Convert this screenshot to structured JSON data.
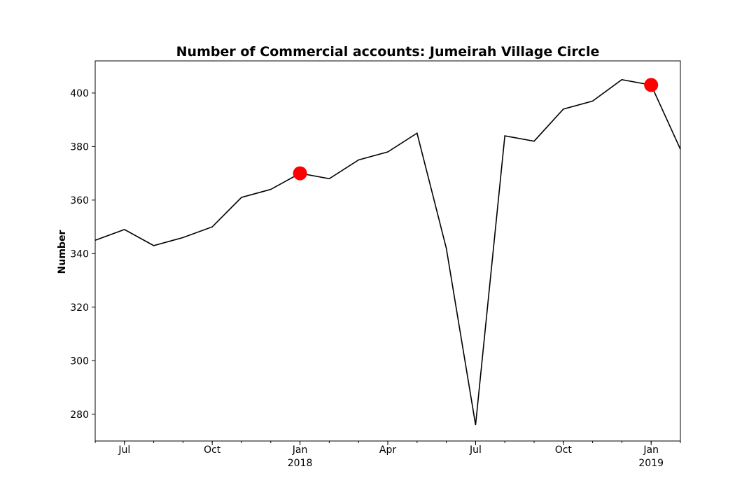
{
  "chart_data": {
    "type": "line",
    "title": "Number of Commercial accounts: Jumeirah Village Circle",
    "xlabel": "",
    "ylabel": "Number",
    "x": [
      "2017-06",
      "2017-07",
      "2017-08",
      "2017-09",
      "2017-10",
      "2017-11",
      "2017-12",
      "2018-01",
      "2018-02",
      "2018-03",
      "2018-04",
      "2018-05",
      "2018-06",
      "2018-07",
      "2018-08",
      "2018-09",
      "2018-10",
      "2018-11",
      "2018-12",
      "2019-01",
      "2019-02"
    ],
    "series": [
      {
        "values": [
          345,
          349,
          343,
          346,
          350,
          361,
          364,
          370,
          368,
          375,
          378,
          385,
          342,
          276,
          384,
          382,
          394,
          397,
          405,
          403,
          379
        ],
        "color": "#000000"
      }
    ],
    "highlights": [
      {
        "x": "2018-01",
        "y": 370,
        "color": "#ff0000"
      },
      {
        "x": "2019-01",
        "y": 403,
        "color": "#ff0000"
      }
    ],
    "xlim": [
      "2017-06",
      "2019-02"
    ],
    "ylim": [
      270,
      412
    ],
    "yticks": [
      280,
      300,
      320,
      340,
      360,
      380,
      400
    ],
    "xticks": [
      {
        "x": "2017-07",
        "label": "Jul",
        "sublabel": ""
      },
      {
        "x": "2017-10",
        "label": "Oct",
        "sublabel": ""
      },
      {
        "x": "2018-01",
        "label": "Jan",
        "sublabel": "2018"
      },
      {
        "x": "2018-04",
        "label": "Apr",
        "sublabel": ""
      },
      {
        "x": "2018-07",
        "label": "Jul",
        "sublabel": ""
      },
      {
        "x": "2018-10",
        "label": "Oct",
        "sublabel": ""
      },
      {
        "x": "2019-01",
        "label": "Jan",
        "sublabel": "2019"
      }
    ],
    "grid": false,
    "legend": "none"
  }
}
